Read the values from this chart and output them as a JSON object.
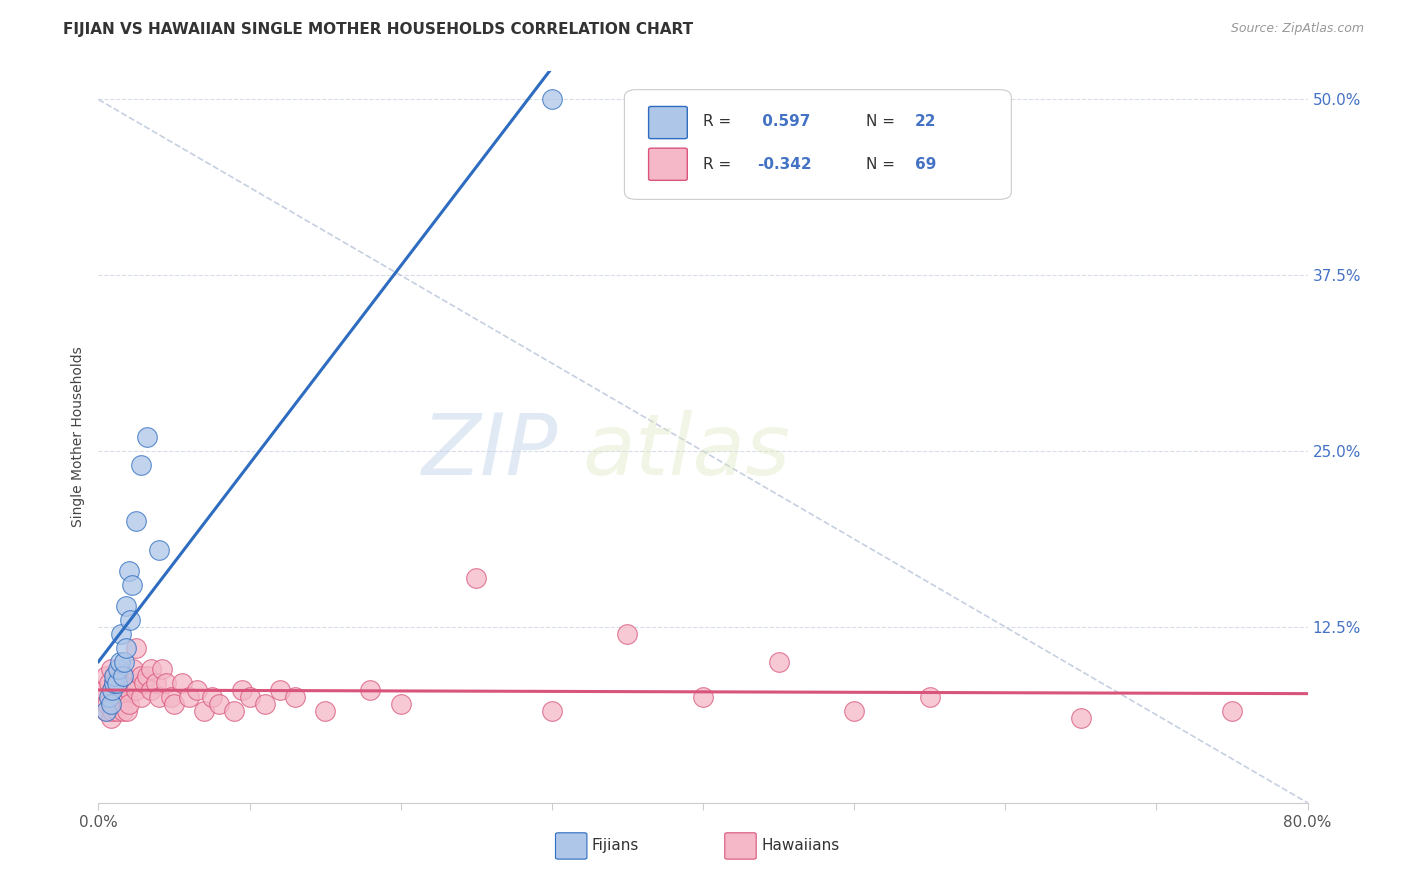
{
  "title": "FIJIAN VS HAWAIIAN SINGLE MOTHER HOUSEHOLDS CORRELATION CHART",
  "source": "Source: ZipAtlas.com",
  "ylabel": "Single Mother Households",
  "xlim": [
    0.0,
    0.8
  ],
  "ylim": [
    0.0,
    0.52
  ],
  "ytick_positions": [
    0.0,
    0.125,
    0.25,
    0.375,
    0.5
  ],
  "ytick_labels": [
    "",
    "12.5%",
    "25.0%",
    "37.5%",
    "50.0%"
  ],
  "fijian_R": 0.597,
  "fijian_N": 22,
  "hawaiian_R": -0.342,
  "hawaiian_N": 69,
  "fijian_color": "#aec6e8",
  "fijian_line_color": "#2d6cc0",
  "hawaiian_color": "#f4b8c8",
  "hawaiian_line_color": "#d9547a",
  "background_color": "#ffffff",
  "grid_color": "#d8dce8",
  "title_fontsize": 11,
  "fijian_x": [
    0.005,
    0.007,
    0.008,
    0.009,
    0.01,
    0.01,
    0.012,
    0.013,
    0.014,
    0.015,
    0.016,
    0.017,
    0.018,
    0.018,
    0.02,
    0.021,
    0.022,
    0.025,
    0.028,
    0.032,
    0.04,
    0.3
  ],
  "fijian_y": [
    0.065,
    0.075,
    0.07,
    0.08,
    0.085,
    0.09,
    0.085,
    0.095,
    0.1,
    0.12,
    0.09,
    0.1,
    0.14,
    0.11,
    0.165,
    0.13,
    0.155,
    0.2,
    0.24,
    0.26,
    0.18,
    0.5
  ],
  "hawaiian_x": [
    0.003,
    0.004,
    0.005,
    0.005,
    0.006,
    0.007,
    0.008,
    0.008,
    0.009,
    0.009,
    0.01,
    0.01,
    0.011,
    0.011,
    0.012,
    0.012,
    0.013,
    0.014,
    0.014,
    0.015,
    0.015,
    0.016,
    0.016,
    0.017,
    0.018,
    0.018,
    0.019,
    0.02,
    0.02,
    0.022,
    0.023,
    0.025,
    0.025,
    0.028,
    0.028,
    0.03,
    0.032,
    0.035,
    0.035,
    0.038,
    0.04,
    0.042,
    0.045,
    0.048,
    0.05,
    0.055,
    0.06,
    0.065,
    0.07,
    0.075,
    0.08,
    0.09,
    0.095,
    0.1,
    0.11,
    0.12,
    0.13,
    0.15,
    0.18,
    0.2,
    0.25,
    0.3,
    0.35,
    0.4,
    0.45,
    0.5,
    0.55,
    0.65,
    0.75
  ],
  "hawaiian_y": [
    0.075,
    0.08,
    0.065,
    0.09,
    0.07,
    0.085,
    0.06,
    0.095,
    0.065,
    0.08,
    0.07,
    0.085,
    0.075,
    0.09,
    0.065,
    0.08,
    0.085,
    0.07,
    0.09,
    0.075,
    0.085,
    0.065,
    0.08,
    0.09,
    0.075,
    0.085,
    0.065,
    0.08,
    0.07,
    0.085,
    0.095,
    0.11,
    0.08,
    0.09,
    0.075,
    0.085,
    0.09,
    0.08,
    0.095,
    0.085,
    0.075,
    0.095,
    0.085,
    0.075,
    0.07,
    0.085,
    0.075,
    0.08,
    0.065,
    0.075,
    0.07,
    0.065,
    0.08,
    0.075,
    0.07,
    0.08,
    0.075,
    0.065,
    0.08,
    0.07,
    0.16,
    0.065,
    0.12,
    0.075,
    0.1,
    0.065,
    0.075,
    0.06,
    0.065
  ]
}
